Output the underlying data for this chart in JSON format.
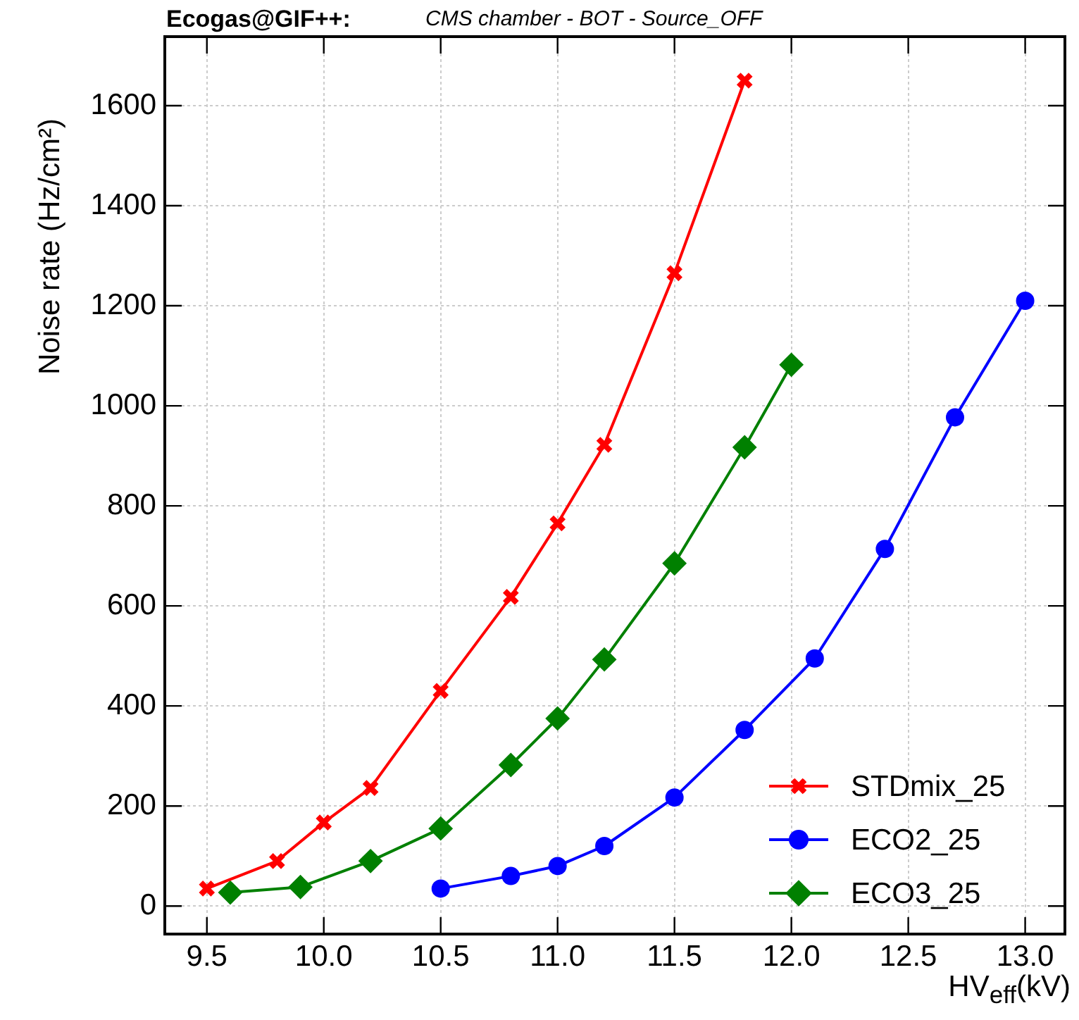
{
  "chart_data": {
    "type": "line",
    "title": "Ecogas@GIF++:",
    "subtitle": "CMS chamber - BOT - Source_OFF",
    "xlabel": "HV$_{eff}$(kV)",
    "ylabel": "Noise rate (Hz/cm²)",
    "xlim": [
      9.32,
      13.17
    ],
    "xticks": [
      9.5,
      {
        "value": 10,
        "label": "10.0"
      },
      10.5,
      {
        "value": 11,
        "label": "11.0"
      },
      11.5,
      {
        "value": 12,
        "label": "12.0"
      },
      12.5,
      {
        "value": 13,
        "label": "13.0"
      }
    ],
    "ylim": [
      -56,
      1738
    ],
    "yticks": [
      0,
      200,
      400,
      600,
      800,
      1000,
      1200,
      1400,
      1600
    ],
    "grid": true,
    "legend": "bottom right",
    "line_style": "solid",
    "series": [
      {
        "name": "STDmix_25",
        "color": "#ff0000",
        "marker": "cross",
        "x": [
          9.5,
          9.8,
          10.0,
          10.2,
          10.5,
          10.8,
          11.0,
          11.2,
          11.5,
          11.8
        ],
        "values": [
          35,
          90,
          167,
          236,
          430,
          618,
          765,
          922,
          1265,
          1650
        ]
      },
      {
        "name": "ECO2_25",
        "color": "#0000ff",
        "marker": "circle",
        "x": [
          10.5,
          10.8,
          11.0,
          11.2,
          11.5,
          11.8,
          12.1,
          12.4,
          12.7,
          13.0
        ],
        "values": [
          35,
          60,
          80,
          120,
          217,
          352,
          495,
          714,
          977,
          1210
        ]
      },
      {
        "name": "ECO3_25",
        "color": "#008000",
        "marker": "diamond",
        "x": [
          9.6,
          9.9,
          10.2,
          10.5,
          10.8,
          11.0,
          11.2,
          11.5,
          11.8,
          12.0
        ],
        "values": [
          27,
          38,
          90,
          155,
          282,
          375,
          493,
          685,
          917,
          1082
        ]
      }
    ]
  }
}
